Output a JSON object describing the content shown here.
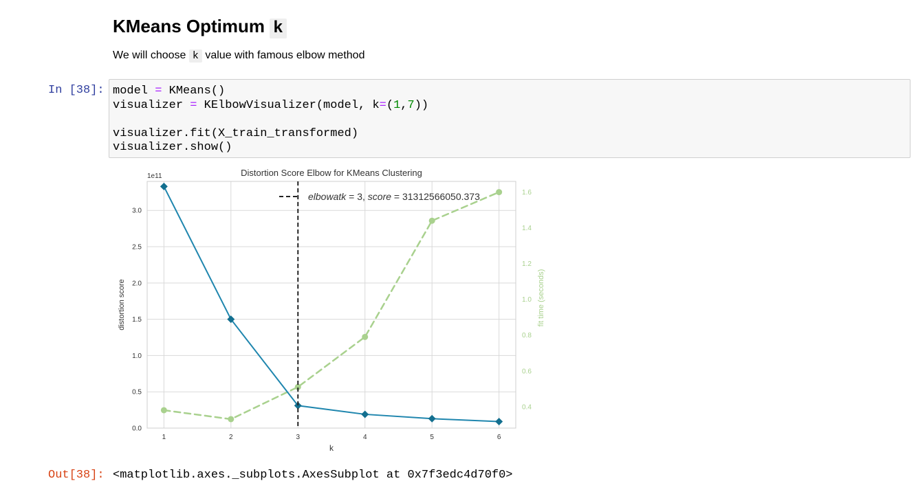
{
  "markdown": {
    "heading_text": "KMeans Optimum",
    "heading_code": "k",
    "text_before": "We will choose",
    "text_code": "k",
    "text_after": "value with famous elbow method"
  },
  "cell": {
    "in_prompt": "In [38]:",
    "code": {
      "l1_a": "model ",
      "l1_op": "=",
      "l1_b": " KMeans()",
      "l2_a": "visualizer ",
      "l2_op": "=",
      "l2_b": " KElbowVisualizer(model, k",
      "l2_op2": "=",
      "l2_c": "(",
      "l2_n1": "1",
      "l2_d": ",",
      "l2_n2": "7",
      "l2_e": "))",
      "l3": "",
      "l4": "visualizer.fit(X_train_transformed)",
      "l5": "visualizer.show()"
    },
    "out_prompt": "Out[38]:",
    "out_text": "<matplotlib.axes._subplots.AxesSubplot at 0x7f3edc4d70f0>"
  },
  "chart_data": {
    "type": "line",
    "title": "Distortion Score Elbow for KMeans Clustering",
    "xlabel": "k",
    "ylabel": "distortion score",
    "ylabel_right": "fit time (seconds)",
    "y_multiplier": "1e11",
    "x": [
      1,
      2,
      3,
      4,
      5,
      6
    ],
    "x_ticks": [
      "1",
      "2",
      "3",
      "4",
      "5",
      "6"
    ],
    "ylim": [
      0,
      3.4
    ],
    "y_ticks": [
      "0.0",
      "0.5",
      "1.0",
      "1.5",
      "2.0",
      "2.5",
      "3.0"
    ],
    "y2lim": [
      0.28,
      1.66
    ],
    "y2_ticks": [
      "0.4",
      "0.6",
      "0.8",
      "1.0",
      "1.2",
      "1.4",
      "1.6"
    ],
    "grid": true,
    "series": [
      {
        "values": [
          3.33,
          1.5,
          0.31,
          0.19,
          0.13,
          0.09
        ],
        "color": "#1f86ae",
        "axis": "left",
        "marker": "diamond"
      },
      {
        "values": [
          0.38,
          0.33,
          0.51,
          0.79,
          1.44,
          1.6
        ],
        "color": "#a9d18e",
        "axis": "right",
        "marker": "circle",
        "dashed": true
      }
    ],
    "elbow": {
      "k": 3,
      "legend_label": "elbow at k = 3, score = 31312566050.373",
      "legend_text_a": "elbowatk",
      "legend_text_b": " = 3, ",
      "legend_text_c": "score",
      "legend_text_d": " = 31312566050.373",
      "color": "#222222"
    }
  }
}
